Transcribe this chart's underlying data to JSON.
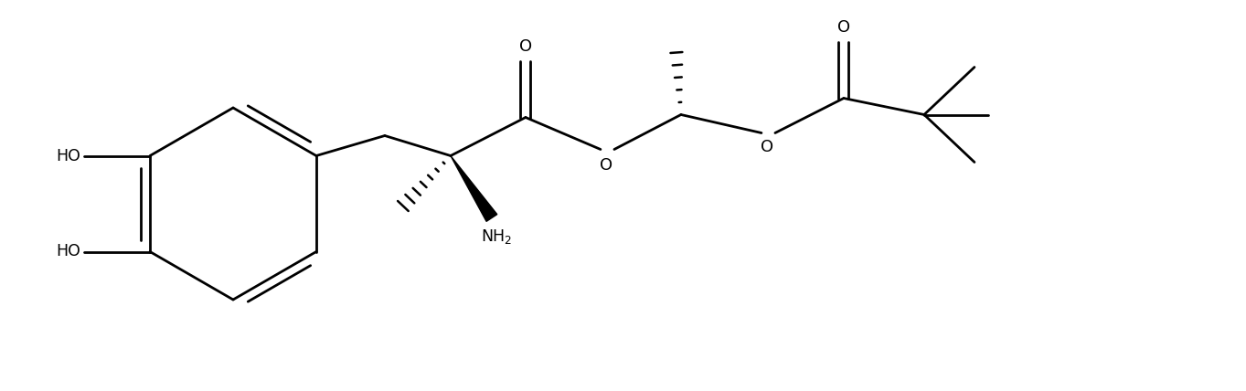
{
  "bg_color": "#ffffff",
  "line_color": "#000000",
  "lw": 2.0,
  "fig_width": 13.63,
  "fig_height": 4.28,
  "dpi": 100,
  "xlim": [
    0,
    13.63
  ],
  "ylim": [
    0,
    4.28
  ]
}
